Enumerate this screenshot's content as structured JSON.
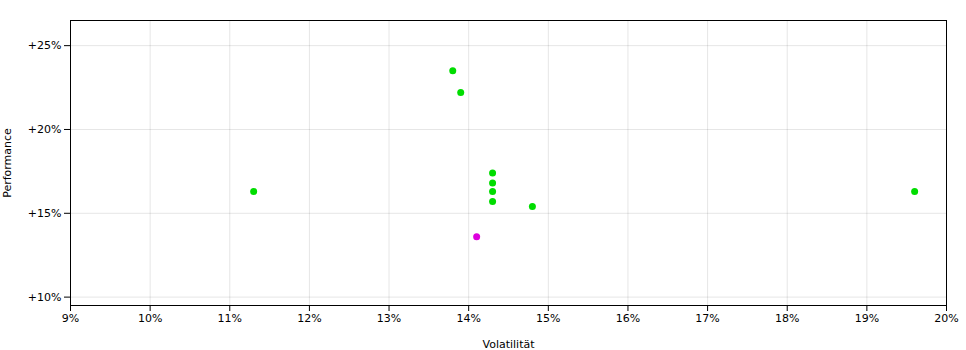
{
  "chart_data": {
    "type": "scatter",
    "xlabel": "Volatilität",
    "ylabel": "Performance",
    "xlim": [
      0.09,
      0.2
    ],
    "ylim": [
      0.095,
      0.265
    ],
    "xticks": [
      {
        "value": 0.09,
        "label": "9%"
      },
      {
        "value": 0.1,
        "label": "10%"
      },
      {
        "value": 0.11,
        "label": "11%"
      },
      {
        "value": 0.12,
        "label": "12%"
      },
      {
        "value": 0.13,
        "label": "13%"
      },
      {
        "value": 0.14,
        "label": "14%"
      },
      {
        "value": 0.15,
        "label": "15%"
      },
      {
        "value": 0.16,
        "label": "16%"
      },
      {
        "value": 0.17,
        "label": "17%"
      },
      {
        "value": 0.18,
        "label": "18%"
      },
      {
        "value": 0.19,
        "label": "19%"
      },
      {
        "value": 0.2,
        "label": "20%"
      }
    ],
    "yticks": [
      {
        "value": 0.1,
        "label": "+10%"
      },
      {
        "value": 0.15,
        "label": "+15%"
      },
      {
        "value": 0.2,
        "label": "+20%"
      },
      {
        "value": 0.25,
        "label": "+25%"
      }
    ],
    "grid": true,
    "series": [
      {
        "color": "#00dd00",
        "x": [
          0.138,
          0.139,
          0.143,
          0.143,
          0.143,
          0.143,
          0.148,
          0.113,
          0.196
        ],
        "y": [
          0.235,
          0.222,
          0.174,
          0.168,
          0.163,
          0.157,
          0.154,
          0.163,
          0.163
        ]
      },
      {
        "color": "#dd00dd",
        "x": [
          0.141
        ],
        "y": [
          0.136
        ]
      }
    ]
  }
}
